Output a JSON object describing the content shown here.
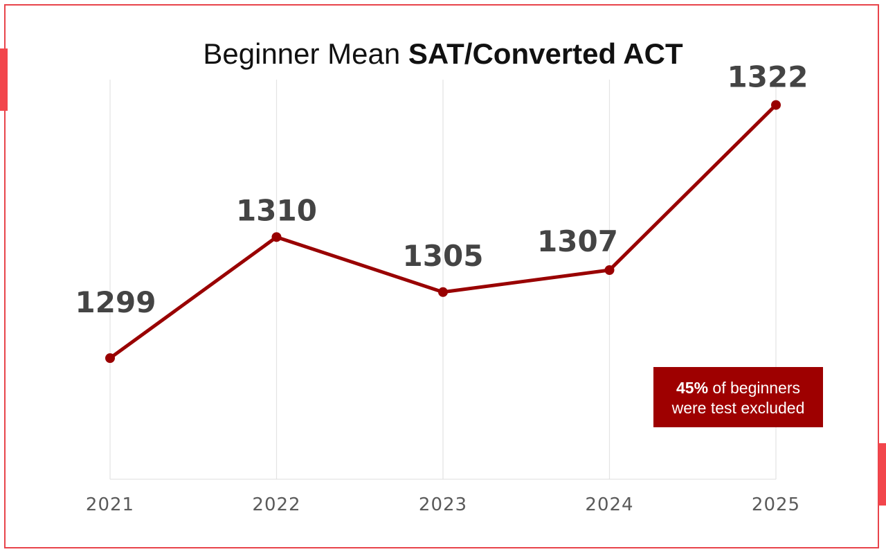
{
  "title": {
    "regular": "Beginner Mean",
    "bold": "SAT/Converted ACT"
  },
  "callout": {
    "percent": "45%",
    "line1_rest": "of beginners",
    "line2": "were test excluded",
    "bg_color": "#9e0000"
  },
  "chart_data": {
    "type": "line",
    "title": "Beginner Mean SAT/Converted ACT",
    "xlabel": "",
    "ylabel": "",
    "categories": [
      "2021",
      "2022",
      "2023",
      "2024",
      "2025"
    ],
    "series": [
      {
        "values": [
          1299,
          1310,
          1305,
          1307,
          1322
        ],
        "color": "#990000"
      }
    ],
    "data_labels": [
      "1299",
      "1310",
      "1305",
      "1307",
      "1322"
    ],
    "ylim": [
      1288,
      1326
    ],
    "grid": "vertical",
    "gridline_color": "#e3e3e3"
  },
  "colors": {
    "frame": "#e8434a",
    "accent": "#f2464c"
  }
}
